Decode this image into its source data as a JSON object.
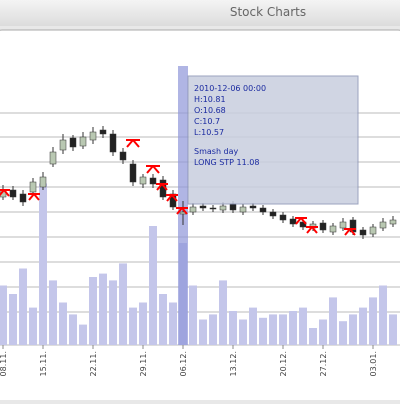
{
  "window_title": "Stock Charts",
  "chart_data": {
    "type": "candlestick",
    "categories": [
      "08.11.",
      null,
      null,
      null,
      "15.11.",
      null,
      null,
      null,
      null,
      "22.11.",
      null,
      null,
      null,
      null,
      "29.11.",
      null,
      null,
      null,
      "06.12.",
      null,
      null,
      null,
      null,
      "13.12.",
      null,
      null,
      null,
      null,
      "20.12.",
      null,
      null,
      null,
      "27.12.",
      null,
      null,
      null,
      null,
      "03.01.",
      null,
      null
    ],
    "open": [
      10.85,
      10.92,
      10.88,
      10.9,
      10.95,
      11.18,
      11.32,
      11.44,
      11.36,
      11.42,
      11.52,
      11.48,
      11.3,
      11.18,
      10.98,
      11.04,
      11.02,
      10.88,
      10.68,
      10.7,
      10.76,
      10.74,
      10.72,
      10.78,
      10.7,
      10.76,
      10.74,
      10.7,
      10.67,
      10.63,
      10.6,
      10.54,
      10.59,
      10.5,
      10.54,
      10.62,
      10.52,
      10.48,
      10.54,
      10.58
    ],
    "high": [
      10.97,
      10.96,
      10.92,
      11.04,
      11.1,
      11.35,
      11.48,
      11.47,
      11.5,
      11.55,
      11.56,
      11.52,
      11.34,
      11.22,
      11.08,
      11.08,
      11.06,
      10.92,
      10.81,
      10.79,
      10.79,
      10.77,
      10.8,
      10.81,
      10.78,
      10.79,
      10.77,
      10.73,
      10.7,
      10.66,
      10.62,
      10.61,
      10.62,
      10.59,
      10.64,
      10.65,
      10.55,
      10.58,
      10.64,
      10.66
    ],
    "low": [
      10.82,
      10.82,
      10.76,
      10.86,
      10.92,
      11.15,
      11.28,
      11.31,
      11.33,
      11.38,
      11.44,
      11.26,
      11.18,
      10.96,
      10.94,
      10.94,
      10.82,
      10.72,
      10.57,
      10.67,
      10.71,
      10.7,
      10.69,
      10.69,
      10.67,
      10.71,
      10.67,
      10.63,
      10.59,
      10.55,
      10.52,
      10.51,
      10.49,
      10.47,
      10.51,
      10.47,
      10.43,
      10.45,
      10.51,
      10.55
    ],
    "close": [
      10.92,
      10.85,
      10.8,
      11.0,
      11.05,
      11.3,
      11.42,
      11.35,
      11.45,
      11.5,
      11.48,
      11.3,
      11.22,
      11.0,
      11.05,
      10.98,
      10.85,
      10.75,
      10.7,
      10.75,
      10.74,
      10.73,
      10.76,
      10.72,
      10.75,
      10.74,
      10.7,
      10.66,
      10.62,
      10.58,
      10.55,
      10.58,
      10.52,
      10.56,
      10.6,
      10.5,
      10.47,
      10.55,
      10.6,
      10.62
    ],
    "volume": [
      35,
      30,
      45,
      22,
      95,
      38,
      25,
      18,
      12,
      40,
      42,
      38,
      48,
      22,
      25,
      70,
      30,
      25,
      60,
      35,
      15,
      18,
      38,
      20,
      15,
      22,
      16,
      18,
      18,
      20,
      22,
      10,
      15,
      28,
      14,
      18,
      22,
      28,
      35,
      18
    ],
    "ylim": [
      9,
      12.4
    ],
    "y2lim": [
      0,
      100
    ],
    "up_color": "#b9c8b2",
    "down_color": "#222222",
    "volume_color": "#c4c6ea"
  },
  "tooltip": {
    "lines": [
      "2010-12-06 00:00",
      "H:10.81",
      "O:10.68",
      "C:10.7",
      "L:10.57"
    ],
    "signal": "Smash day",
    "stop": "LONG STP 11.08"
  }
}
